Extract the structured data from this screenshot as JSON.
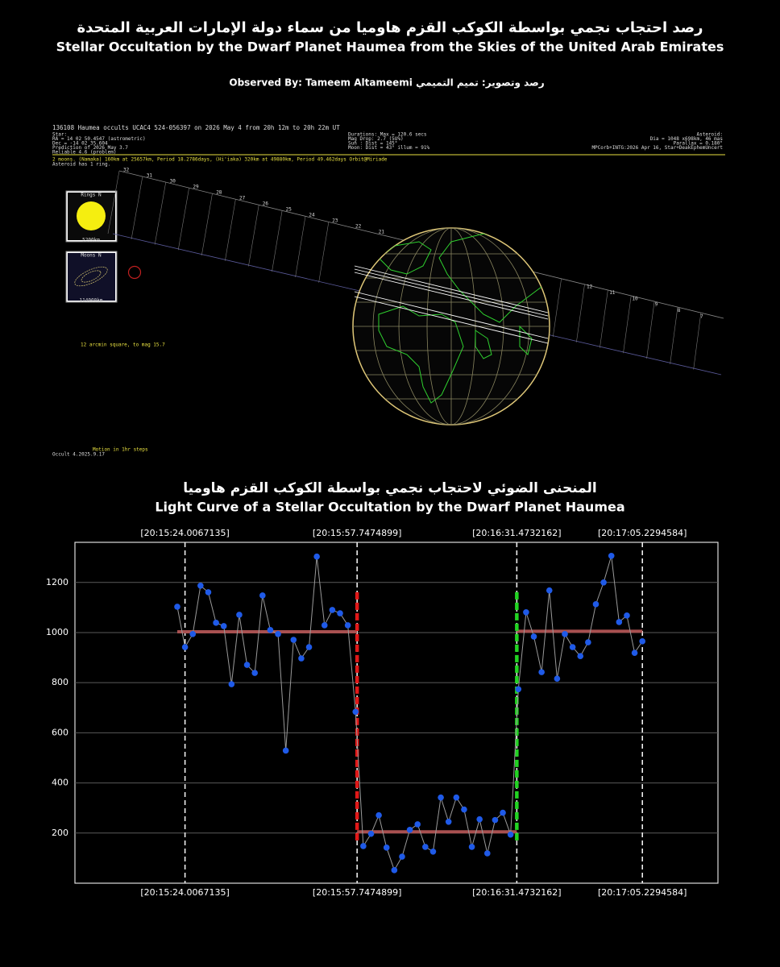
{
  "header": {
    "title_ar": "رصد احتجاب نجمي بواسطة الكوكب القزم هاوميا من سماء دولة الإمارات العربية المتحدة",
    "title_en": "Stellar Occultation by the Dwarf Planet Haumea from the Skies of the United Arab Emirates",
    "observer": "Observed By: Tameem Altameemi رصد وتصوير: تميم التميمي"
  },
  "map": {
    "heading": "136108 Haumea occults UCAC4 524-056397 on 2026 May  4 from 20h 12m to 20h 22m UT",
    "left_lines": [
      "Star:",
      "RA = 14 02 50.4547 (astrometric)",
      "Dec = -14 02 35.604",
      "Prediction of 2026 May  3.7",
      "Reliable 4.6 (problem)"
    ],
    "middle_lines": [
      "Durations: Max = 120.6 secs",
      "Mag Drop: 2.7 (5U%)",
      "Sun :  Dist = 145°",
      "Moon:  Dist = 43°  illum = 91%"
    ],
    "right_lines": [
      "Asteroid:",
      "Dia = 1048 x698km, 46 mas",
      "Parallax = 0.180\"",
      "MPCorb+INTG:2026 Apr 16, Star+DeakEphemUncert"
    ],
    "moons_note": "2 moons. (Namaka) 160km at 25657km, Period 18.2786days, (Hi'iaka) 320km at 49880km, Period 49.462days  Orbit@Miriade",
    "ring_note": "Asteroid has 1 ring.",
    "rings_label": "Rings N",
    "rings_scale": "5200km",
    "moons_label": "Moons N",
    "moons_scale": "114000km",
    "field_note": "12 arcmin square, to mag 15.7",
    "motion_note": "Motion in 1hr steps",
    "software": "Occult 4.2025.9.17",
    "path_left": [
      "32",
      "31",
      "30",
      "29",
      "28",
      "27",
      "26",
      "25",
      "24",
      "23",
      "22",
      "21"
    ],
    "path_right": [
      "12",
      "11",
      "10",
      "9",
      "8",
      "7"
    ]
  },
  "chart_data": {
    "type": "line",
    "title_ar": "المنحنى الضوئي لاحتجاب نجمي بواسطة الكوكب القزم هاوميا",
    "title": "Light Curve of a Stellar Occultation by the Dwarf Planet Haumea",
    "values": [
      1103,
      942,
      994,
      1187,
      1161,
      1039,
      1026,
      794,
      1071,
      871,
      839,
      1148,
      1010,
      994,
      529,
      971,
      897,
      942,
      1303,
      1029,
      1090,
      1077,
      1029,
      684,
      148,
      197,
      271,
      142,
      52,
      106,
      213,
      235,
      145,
      126,
      342,
      245,
      342,
      294,
      145,
      255,
      119,
      252,
      281,
      194,
      774,
      1081,
      984,
      842,
      1168,
      816,
      994,
      942,
      906,
      961,
      1113,
      1200,
      1306,
      1042,
      1068,
      919,
      965
    ],
    "color": "#1f5ae8",
    "line_color": "#9a9a9a",
    "xlim": [
      -13.2,
      69.75
    ],
    "xticks": [
      {
        "value": 1.0,
        "label": "[20:15:24.0067135]"
      },
      {
        "value": 23.2,
        "label": "[20:15:57.7474899]"
      },
      {
        "value": 43.8,
        "label": "[20:16:31.4732162]"
      },
      {
        "value": 60,
        "label": "[20:17:05.2294584]"
      }
    ],
    "ylim": [
      0,
      1360
    ],
    "yticks": [
      200,
      400,
      600,
      800,
      1000,
      1200
    ],
    "grid": true,
    "levels": [
      {
        "xlim": [
          0,
          23.2
        ],
        "value": 1003,
        "color": "#a85050"
      },
      {
        "xlim": [
          23.2,
          43.8
        ],
        "value": 205,
        "color": "#a85050"
      },
      {
        "xlim": [
          43.8,
          60
        ],
        "value": 1005,
        "color": "#a85050"
      }
    ],
    "events": [
      {
        "x": 23.2,
        "ylim": [
          158,
          1161
        ],
        "color": "#e01818"
      },
      {
        "x": 43.8,
        "ylim": [
          158,
          1161
        ],
        "color": "#22d422"
      }
    ]
  }
}
